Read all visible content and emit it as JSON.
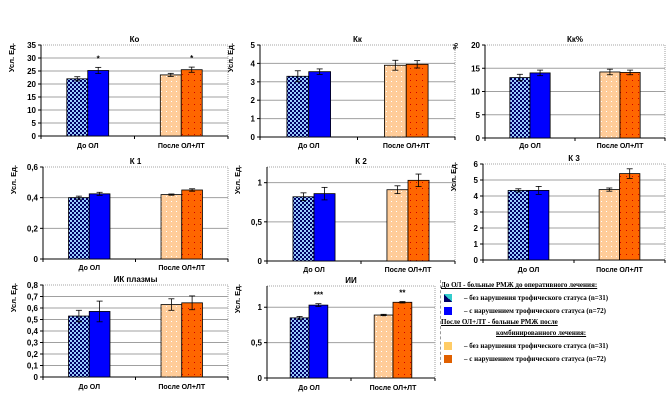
{
  "colors": {
    "checker_light": "#99ccff",
    "checker_dark": "#000066",
    "blue": "#0000ff",
    "peach": "#ffcc99",
    "orange": "#ff6600",
    "grid": "#a0a0a0"
  },
  "legend": {
    "before_heading": "До ОЛ - больные РМЖ до оперативного лечения:",
    "before_item_1": "– без нарушения трофического статуса (n=31)",
    "before_item_2": "– с нарушением трофического статуса (n=72)",
    "after_heading_1": "После ОЛ+ЛТ - больные РМЖ после",
    "after_heading_2": "комбинированного лечения:",
    "after_item_1": "– без нарушения трофического статуса (n=31)",
    "after_item_2": "– с нарушением трофического статуса (n=72)"
  },
  "chart_data": [
    {
      "type": "bar",
      "title": "Ко",
      "ylabel": "Усл. Ед.",
      "categories": [
        "До ОЛ",
        "После ОЛ+ЛТ"
      ],
      "ylim": [
        0,
        35
      ],
      "yticks": [
        "0",
        "5",
        "10",
        "15",
        "20",
        "25",
        "30",
        "35"
      ],
      "values": [
        [
          22,
          25.2
        ],
        [
          23.5,
          25.5
        ]
      ],
      "errors": [
        [
          0.8,
          1.2
        ],
        [
          0.6,
          1.0
        ]
      ],
      "significance": [
        [
          "",
          "*"
        ],
        [
          "",
          "*"
        ]
      ],
      "grid": true
    },
    {
      "type": "bar",
      "title": "Кк",
      "ylabel": "Усл. Ед.",
      "categories": [
        "До ОЛ",
        "После ОЛ+ЛТ"
      ],
      "ylim": [
        0,
        5
      ],
      "yticks": [
        "0",
        "1",
        "2",
        "3",
        "4",
        "5"
      ],
      "values": [
        [
          3.3,
          3.55
        ],
        [
          3.9,
          3.95
        ]
      ],
      "errors": [
        [
          0.3,
          0.15
        ],
        [
          0.27,
          0.2
        ]
      ],
      "significance": [
        [
          "",
          ""
        ],
        [
          "",
          ""
        ]
      ],
      "grid": true
    },
    {
      "type": "bar",
      "title": "Кк%",
      "ylabel": "%",
      "categories": [
        "До ОЛ",
        "После ОЛ+ЛТ"
      ],
      "ylim": [
        0,
        20
      ],
      "yticks": [
        "0",
        "5",
        "10",
        "15",
        "20"
      ],
      "values": [
        [
          13,
          14
        ],
        [
          14.2,
          14.1
        ]
      ],
      "errors": [
        [
          0.7,
          0.6
        ],
        [
          0.6,
          0.5
        ]
      ],
      "significance": [
        [
          "",
          ""
        ],
        [
          "",
          ""
        ]
      ],
      "grid": true
    },
    {
      "type": "bar",
      "title": "К 1",
      "ylabel": "Усл. Ед.",
      "categories": [
        "До ОЛ",
        "После ОЛ+ЛТ"
      ],
      "ylim": [
        0,
        0.6
      ],
      "yticks": [
        "0",
        "0,2",
        "0,4",
        "0,6"
      ],
      "values": [
        [
          0.4,
          0.425
        ],
        [
          0.42,
          0.45
        ]
      ],
      "errors": [
        [
          0.01,
          0.01
        ],
        [
          0.004,
          0.008
        ]
      ],
      "significance": [
        [
          "",
          ""
        ],
        [
          "",
          ""
        ]
      ],
      "grid": true
    },
    {
      "type": "bar",
      "title": "К 2",
      "ylabel": "Усл. Ед.",
      "categories": [
        "До ОЛ",
        "После ОЛ+ЛТ"
      ],
      "ylim": [
        0,
        1.2
      ],
      "yticks": [
        "0",
        "0,5",
        "1"
      ],
      "values": [
        [
          0.82,
          0.86
        ],
        [
          0.91,
          1.03
        ]
      ],
      "errors": [
        [
          0.05,
          0.08
        ],
        [
          0.05,
          0.08
        ]
      ],
      "significance": [
        [
          "",
          ""
        ],
        [
          "",
          ""
        ]
      ],
      "grid": true
    },
    {
      "type": "bar",
      "title": "К 3",
      "ylabel": "Усл. Ед.",
      "categories": [
        "До ОЛ",
        "После ОЛ+ЛТ"
      ],
      "ylim": [
        0,
        6
      ],
      "yticks": [
        "0",
        "1",
        "2",
        "3",
        "4",
        "5",
        "6"
      ],
      "values": [
        [
          4.35,
          4.35
        ],
        [
          4.4,
          5.4
        ]
      ],
      "errors": [
        [
          0.1,
          0.25
        ],
        [
          0.1,
          0.3
        ]
      ],
      "significance": [
        [
          "",
          ""
        ],
        [
          "",
          ""
        ]
      ],
      "grid": true
    },
    {
      "type": "bar",
      "title": "ИК плазмы",
      "ylabel": "Усл. Ед.",
      "categories": [
        "До ОЛ",
        "После ОЛ+ЛТ"
      ],
      "ylim": [
        0,
        0.8
      ],
      "yticks": [
        "0",
        "0,1",
        "0,2",
        "0,3",
        "0,4",
        "0,5",
        "0,6",
        "0,7",
        "0,8"
      ],
      "values": [
        [
          0.53,
          0.57
        ],
        [
          0.63,
          0.645
        ]
      ],
      "errors": [
        [
          0.05,
          0.09
        ],
        [
          0.05,
          0.06
        ]
      ],
      "significance": [
        [
          "",
          ""
        ],
        [
          "",
          ""
        ]
      ],
      "grid": true
    },
    {
      "type": "bar",
      "title": "ИИ",
      "ylabel": "Усл. Ед.",
      "categories": [
        "До ОЛ",
        "После ОЛ+ЛТ"
      ],
      "ylim": [
        0,
        1.3
      ],
      "yticks": [
        "0",
        "0,5",
        "1"
      ],
      "values": [
        [
          0.85,
          1.03
        ],
        [
          0.89,
          1.07
        ]
      ],
      "errors": [
        [
          0.02,
          0.02
        ],
        [
          0.01,
          0.01
        ]
      ],
      "significance": [
        [
          "",
          "***"
        ],
        [
          "",
          "**"
        ]
      ],
      "grid": true
    }
  ]
}
